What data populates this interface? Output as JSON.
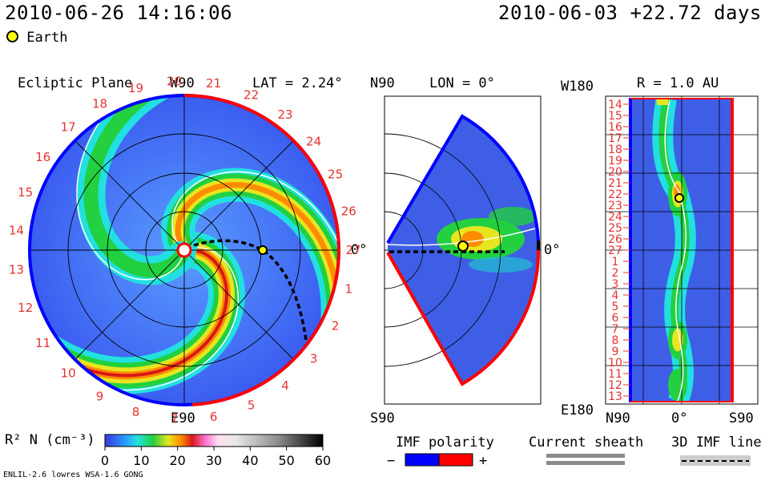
{
  "header": {
    "datetime": "2010-06-26 14:16:06",
    "reference": "2010-06-03 +22.72 days",
    "earth_legend": "Earth"
  },
  "panels": {
    "ecliptic": {
      "title": "Ecliptic Plane",
      "top_label": "W90",
      "bottom_label": "E90",
      "lat_label": "LAT = 2.24°",
      "zero_label": "0°",
      "carrington_ticks": [
        "27",
        "1",
        "2",
        "3",
        "4",
        "5",
        "6",
        "7",
        "8",
        "9",
        "10",
        "11",
        "12",
        "13",
        "14",
        "15",
        "16",
        "17",
        "18",
        "19",
        "20",
        "21",
        "22",
        "23",
        "24",
        "25",
        "26"
      ]
    },
    "meridional": {
      "top_label": "N90",
      "bottom_label": "S90",
      "lon_label": "LON = 0°",
      "zero_label": "0°"
    },
    "radial": {
      "top_left": "W180",
      "bottom_left": "E180",
      "r_label": "R = 1.0 AU",
      "bottom_ticks": [
        "N90",
        "0°",
        "S90"
      ],
      "ticks": [
        "14",
        "15",
        "16",
        "17",
        "18",
        "19",
        "20",
        "21",
        "22",
        "23",
        "24",
        "25",
        "26",
        "27",
        "1",
        "2",
        "3",
        "4",
        "5",
        "6",
        "7",
        "8",
        "9",
        "10",
        "11",
        "12",
        "13"
      ]
    }
  },
  "colorbar": {
    "label": "R² N (cm⁻³)",
    "ticks": [
      "0",
      "10",
      "20",
      "30",
      "40",
      "50",
      "60"
    ]
  },
  "legend": {
    "imf_title": "IMF polarity",
    "minus": "−",
    "plus": "+",
    "sheath_title": "Current sheath",
    "imf3d_title": "3D IMF line",
    "colors": {
      "negative": "#0000ff",
      "positive": "#ff0000"
    }
  },
  "footer": {
    "model": "ENLIL-2.6 lowres WSA-1.6 GONG"
  },
  "chart_data": {
    "type": "heatmap",
    "quantity": "R² N (cm⁻³)",
    "colorbar_range": [
      0,
      60
    ],
    "earth": {
      "date": "2010-06-26",
      "latitude_deg": 2.24,
      "r_au": 1.0
    },
    "radial_profile_peaks": [
      {
        "carrington_tick": "22",
        "value": 25
      },
      {
        "carrington_tick": "8",
        "value": 20
      },
      {
        "carrington_tick": "12",
        "value": 15
      }
    ]
  }
}
